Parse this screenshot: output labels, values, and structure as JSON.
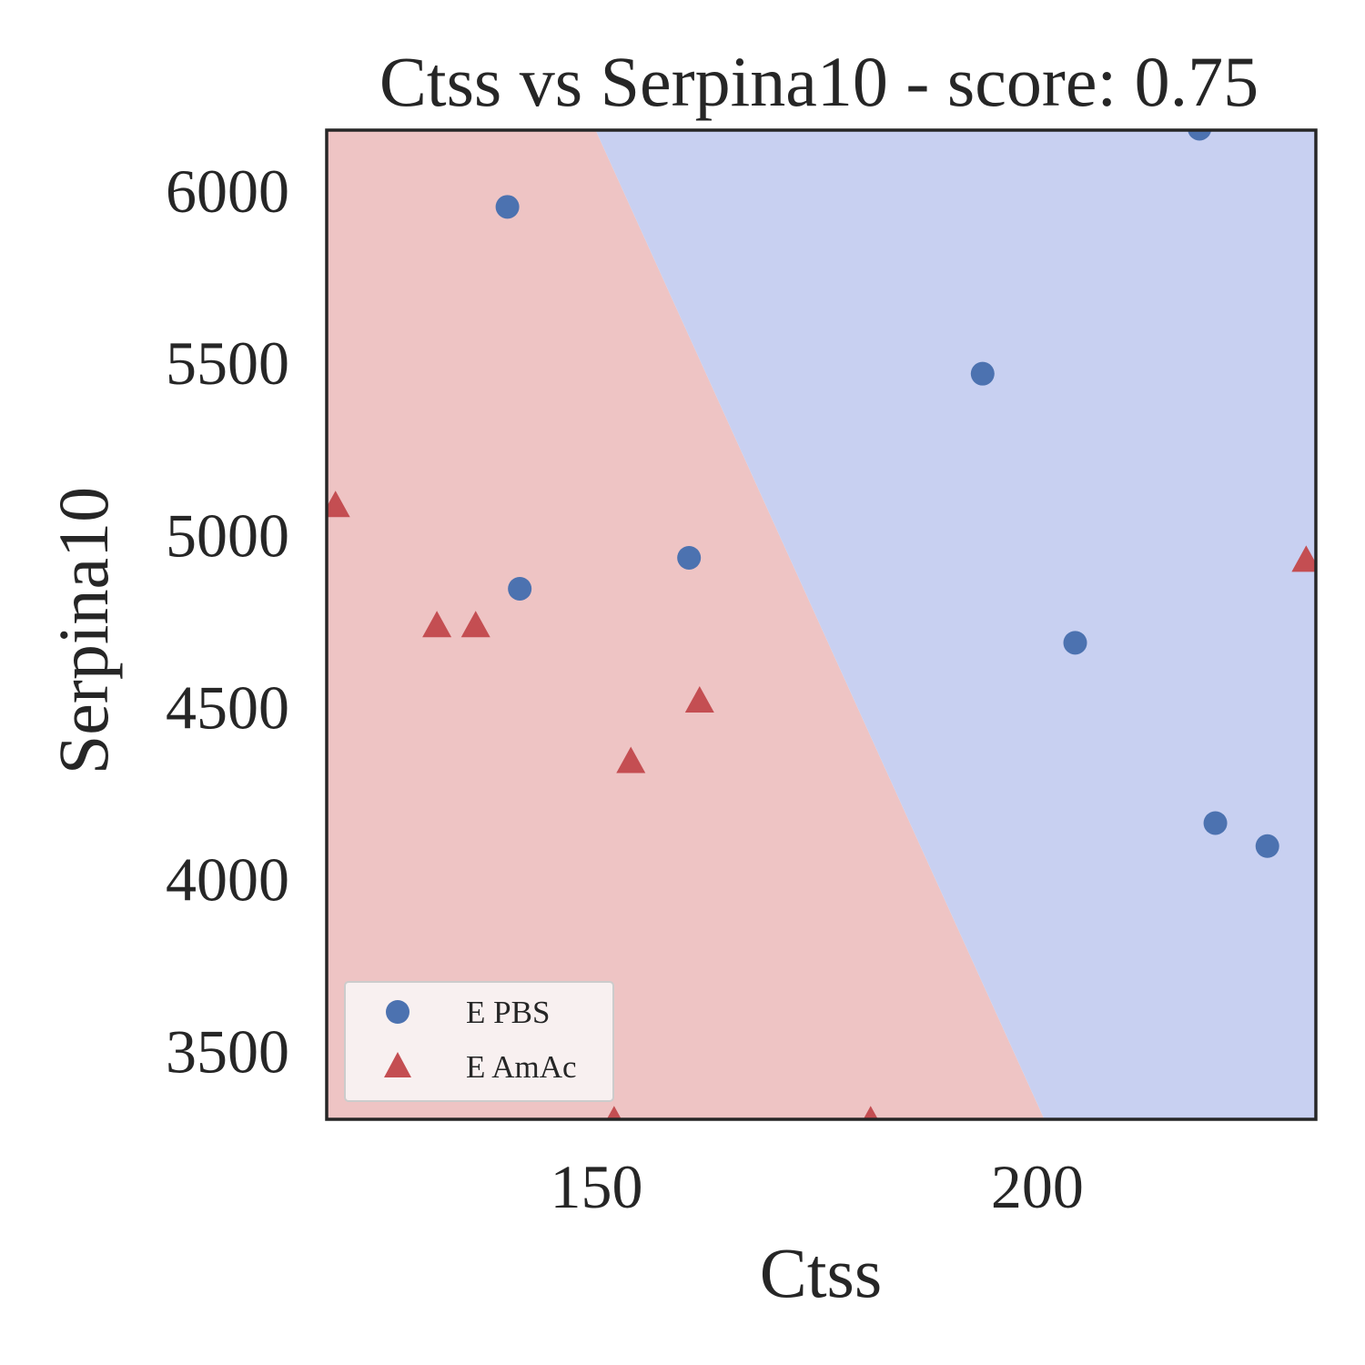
{
  "chart_data": {
    "type": "scatter",
    "title": "Ctss vs Serpina10 - score: 0.75",
    "xlabel": "Ctss",
    "ylabel": "Serpina10",
    "xlim": [
      119.4,
      231.6
    ],
    "ylim": [
      3300,
      6175
    ],
    "x_ticks": [
      150,
      200
    ],
    "y_ticks": [
      3500,
      4000,
      4500,
      5000,
      5500,
      6000
    ],
    "grid": false,
    "legend_position": "lower-left",
    "decision_regions": {
      "boundary_line": [
        [
          149.9,
          6175
        ],
        [
          200.8,
          3300
        ]
      ],
      "left_region_class": "E AmAc",
      "right_region_class": "E PBS",
      "left_color": "#eec4c4",
      "right_color": "#c8d0f1"
    },
    "series": [
      {
        "name": "E PBS",
        "marker": "circle",
        "color": "#4c72b0",
        "points": [
          [
            139.9,
            5952
          ],
          [
            141.3,
            4842
          ],
          [
            160.5,
            4932
          ],
          [
            193.8,
            5467
          ],
          [
            204.3,
            4685
          ],
          [
            218.4,
            6179
          ],
          [
            220.2,
            4161
          ],
          [
            226.1,
            4094
          ]
        ]
      },
      {
        "name": "E AmAc",
        "marker": "triangle",
        "color": "#c44e52",
        "points": [
          [
            120.4,
            5082
          ],
          [
            131.9,
            4733
          ],
          [
            136.3,
            4733
          ],
          [
            153.9,
            4338
          ],
          [
            161.7,
            4514
          ],
          [
            152.0,
            3294
          ],
          [
            181.1,
            3294
          ],
          [
            230.5,
            4923
          ]
        ]
      }
    ],
    "colors": {
      "axis": "#262626",
      "legend_bg": "#f8f0f0",
      "legend_border": "#cccccc"
    }
  }
}
